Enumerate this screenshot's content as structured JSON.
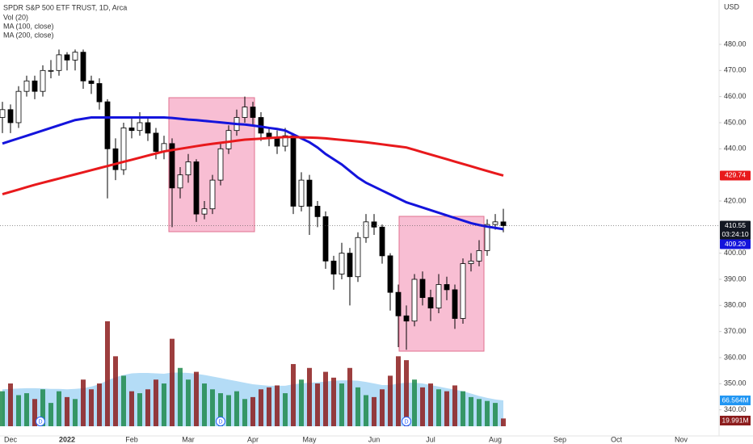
{
  "chart_data": {
    "type": "candlestick",
    "title": "SPDR S&P 500 ETF TRUST, 1D, Arca",
    "currency": "USD",
    "categories": [
      null,
      "Dec",
      null,
      null,
      null,
      null,
      null,
      null,
      "2022",
      null,
      null,
      null,
      null,
      null,
      null,
      null,
      "Feb",
      null,
      null,
      null,
      null,
      null,
      null,
      "Mar",
      null,
      null,
      null,
      null,
      null,
      null,
      null,
      "Apr",
      null,
      null,
      null,
      null,
      null,
      null,
      "May",
      null,
      null,
      null,
      null,
      null,
      null,
      null,
      "Jun",
      null,
      null,
      null,
      null,
      null,
      null,
      "Jul",
      null,
      null,
      null,
      null,
      null,
      null,
      null,
      "Aug",
      null,
      null,
      null,
      null,
      null,
      null,
      null,
      "Sep",
      null,
      null,
      null,
      null,
      null,
      null,
      "Oct",
      null,
      null,
      null,
      null,
      null,
      null,
      null,
      "Nov",
      null,
      null,
      null,
      null
    ],
    "open": [
      452,
      455,
      450,
      462,
      466,
      462,
      470,
      470,
      476,
      474,
      477,
      466,
      465,
      458,
      440,
      432,
      448,
      447,
      450,
      446,
      439,
      442,
      425,
      430,
      435,
      415,
      417,
      428,
      440,
      447,
      452,
      456,
      452,
      446,
      444,
      441,
      445,
      418,
      428,
      418,
      414,
      397,
      392,
      400,
      391,
      406,
      412,
      410,
      399,
      385,
      376,
      374,
      390,
      383,
      379,
      388,
      386,
      375,
      396,
      397,
      401,
      411,
      412,
      null,
      null,
      null,
      null,
      null,
      null,
      null,
      null,
      null,
      null,
      null,
      null,
      null,
      null,
      null,
      null,
      null,
      null,
      null,
      null,
      null,
      null,
      null,
      null,
      null,
      null
    ],
    "high": [
      458,
      457,
      464,
      468,
      468,
      472,
      474,
      478,
      477,
      478,
      478,
      468,
      467,
      459,
      444,
      450,
      452,
      454,
      452,
      448,
      445,
      444,
      433,
      438,
      436,
      420,
      430,
      442,
      449,
      455,
      460,
      458,
      454,
      448,
      447,
      448,
      446,
      431,
      430,
      420,
      416,
      399,
      404,
      402,
      408,
      415,
      415,
      411,
      400,
      388,
      380,
      392,
      393,
      386,
      392,
      391,
      388,
      398,
      400,
      405,
      413,
      415,
      417,
      null,
      null,
      null,
      null,
      null,
      null,
      null,
      null,
      null,
      null,
      null,
      null,
      null,
      null,
      null,
      null,
      null,
      null,
      null,
      null,
      null,
      null,
      null,
      null,
      null,
      null
    ],
    "low": [
      446,
      446,
      448,
      460,
      459,
      460,
      467,
      468,
      470,
      470,
      463,
      461,
      455,
      421,
      428,
      430,
      444,
      445,
      443,
      436,
      436,
      410,
      421,
      427,
      412,
      413,
      415,
      426,
      438,
      445,
      450,
      449,
      443,
      441,
      438,
      439,
      415,
      416,
      407,
      410,
      394,
      386,
      390,
      380,
      389,
      404,
      407,
      396,
      378,
      364,
      363,
      372,
      380,
      374,
      377,
      382,
      371,
      373,
      393,
      395,
      399,
      409,
      408,
      null,
      null,
      null,
      null,
      null,
      null,
      null,
      null,
      null,
      null,
      null,
      null,
      null,
      null,
      null,
      null,
      null,
      null,
      null,
      null,
      null,
      null,
      null,
      null,
      null,
      null
    ],
    "close": [
      455,
      450,
      462,
      466,
      462,
      470,
      470,
      476,
      474,
      477,
      466,
      465,
      458,
      440,
      432,
      448,
      447,
      450,
      446,
      439,
      442,
      425,
      430,
      435,
      415,
      417,
      428,
      440,
      447,
      452,
      456,
      452,
      446,
      444,
      441,
      445,
      418,
      428,
      418,
      414,
      397,
      392,
      400,
      391,
      406,
      412,
      410,
      399,
      385,
      376,
      374,
      390,
      383,
      379,
      388,
      386,
      375,
      396,
      397,
      401,
      411,
      412,
      410.55,
      null,
      null,
      null,
      null,
      null,
      null,
      null,
      null,
      null,
      null,
      null,
      null,
      null,
      null,
      null,
      null,
      null,
      null,
      null,
      null,
      null,
      null,
      null,
      null,
      null,
      null
    ],
    "up_color": "#ffffff",
    "down_color": "#000000",
    "wick_color": "#000000",
    "series": [
      {
        "name": "MA (100, close)",
        "color": "#1414dc",
        "values": [
          442,
          443,
          444,
          445,
          446,
          447,
          448,
          449,
          450,
          451,
          451.5,
          452,
          452,
          452,
          452,
          452,
          452,
          452,
          452,
          452,
          452,
          451.8,
          451.5,
          451.2,
          451,
          450.7,
          450.4,
          450.1,
          449.8,
          449.5,
          449.3,
          448.9,
          448.5,
          448,
          447.6,
          447,
          445.5,
          444,
          442.5,
          440.5,
          438,
          436,
          434,
          431.5,
          429,
          427,
          425.5,
          424,
          422.5,
          421,
          419.5,
          418.5,
          417.5,
          416.5,
          415.5,
          414.5,
          413.5,
          412.5,
          411.5,
          410.8,
          410.2,
          409.7,
          409.2,
          null,
          null,
          null,
          null,
          null,
          null,
          null,
          null,
          null,
          null,
          null,
          null,
          null,
          null,
          null,
          null,
          null,
          null,
          null,
          null,
          null,
          null,
          null,
          null,
          null,
          null
        ],
        "value_labels": [
          null,
          null,
          null,
          null,
          null,
          null,
          null,
          null,
          null,
          null,
          null,
          null,
          null,
          null,
          null,
          null,
          null,
          null,
          null,
          null,
          null,
          null,
          null,
          null,
          null,
          null,
          null,
          null,
          null,
          null,
          null,
          null,
          null,
          null,
          null,
          null,
          null,
          null,
          null,
          null,
          null,
          null,
          null,
          null,
          null,
          null,
          null,
          null,
          null,
          null,
          null,
          null,
          null,
          null,
          null,
          null,
          null,
          null,
          null,
          null,
          null,
          null,
          "409.20",
          null,
          null,
          null,
          null,
          null,
          null,
          null,
          null,
          null,
          null,
          null,
          null,
          null,
          null,
          null,
          null,
          null,
          null,
          null,
          null,
          null,
          null,
          null,
          null,
          null,
          null
        ]
      },
      {
        "name": "MA (200, close)",
        "color": "#e8191c",
        "values": [
          422.6,
          423.5,
          424.4,
          425.3,
          426.2,
          427,
          427.8,
          428.6,
          429.4,
          430.2,
          431,
          431.8,
          432.6,
          433.4,
          434.2,
          435,
          435.8,
          436.6,
          437.4,
          438.2,
          439,
          439.5,
          440,
          440.5,
          441,
          441.5,
          441.9,
          442.3,
          442.7,
          443.1,
          443.5,
          443.7,
          443.9,
          444.1,
          444.3,
          444.5,
          444.5,
          444.4,
          444.3,
          444.2,
          444,
          443.7,
          443.4,
          443.1,
          442.8,
          442.5,
          442.1,
          441.7,
          441.3,
          440.9,
          440.5,
          439.6,
          438.7,
          437.8,
          436.9,
          436,
          435.1,
          434.2,
          433.3,
          432.4,
          431.5,
          430.6,
          429.74,
          null,
          null,
          null,
          null,
          null,
          null,
          null,
          null,
          null,
          null,
          null,
          null,
          null,
          null,
          null,
          null,
          null,
          null,
          null,
          null,
          null,
          null,
          null,
          null,
          null,
          null
        ]
      }
    ],
    "volume": {
      "name": "Vol (20)",
      "up_color": "#1f8a4c",
      "down_color": "#8c1c1c",
      "ylim": [
        0,
        270
      ],
      "values": [
        90,
        110,
        80,
        85,
        70,
        95,
        60,
        90,
        75,
        70,
        120,
        95,
        110,
        270,
        180,
        130,
        90,
        85,
        95,
        120,
        110,
        225,
        150,
        120,
        140,
        110,
        95,
        85,
        80,
        90,
        70,
        75,
        95,
        100,
        105,
        85,
        160,
        120,
        150,
        110,
        140,
        125,
        110,
        150,
        100,
        80,
        75,
        95,
        130,
        180,
        170,
        120,
        100,
        110,
        95,
        90,
        105,
        90,
        75,
        70,
        65,
        60,
        19.991,
        null,
        null,
        null,
        null,
        null,
        null,
        null,
        null,
        null,
        null,
        null,
        null,
        null,
        null,
        null,
        null,
        null,
        null,
        null,
        null,
        null,
        null,
        null,
        null,
        null,
        null
      ],
      "value_labels": [
        null,
        null,
        null,
        null,
        null,
        null,
        null,
        null,
        null,
        null,
        null,
        null,
        null,
        null,
        null,
        null,
        null,
        null,
        null,
        null,
        null,
        null,
        null,
        null,
        null,
        null,
        null,
        null,
        null,
        null,
        null,
        null,
        null,
        null,
        null,
        null,
        null,
        null,
        null,
        null,
        null,
        null,
        null,
        null,
        null,
        null,
        null,
        null,
        null,
        null,
        null,
        null,
        null,
        null,
        null,
        null,
        null,
        null,
        null,
        null,
        null,
        null,
        "19.991M",
        null,
        null,
        null,
        null,
        null,
        null,
        null,
        null,
        null,
        null,
        null,
        null,
        null,
        null,
        null,
        null,
        null,
        null,
        null,
        null,
        null,
        null,
        null,
        null,
        null,
        null
      ],
      "ma": {
        "color": "#a7d6f5",
        "values": [
          95,
          96,
          97,
          98,
          98,
          97,
          96,
          96,
          95,
          96,
          98,
          102,
          108,
          118,
          126,
          132,
          136,
          137,
          137,
          136,
          135,
          138,
          138,
          137,
          135,
          132,
          128,
          124,
          120,
          116,
          112,
          108,
          106,
          104,
          104,
          104,
          108,
          110,
          112,
          113,
          115,
          117,
          118,
          118,
          117,
          114,
          110,
          106,
          106,
          110,
          112,
          112,
          110,
          106,
          102,
          98,
          94,
          90,
          84,
          78,
          73,
          69,
          66.564,
          null,
          null,
          null,
          null,
          null,
          null,
          null,
          null,
          null,
          null,
          null,
          null,
          null,
          null,
          null,
          null,
          null,
          null,
          null,
          null,
          null,
          null,
          null,
          null,
          null,
          null
        ],
        "value_labels": [
          null,
          null,
          null,
          null,
          null,
          null,
          null,
          null,
          null,
          null,
          null,
          null,
          null,
          null,
          null,
          null,
          null,
          null,
          null,
          null,
          null,
          null,
          null,
          null,
          null,
          null,
          null,
          null,
          null,
          null,
          null,
          null,
          null,
          null,
          null,
          null,
          null,
          null,
          null,
          null,
          null,
          null,
          null,
          null,
          null,
          null,
          null,
          null,
          null,
          null,
          null,
          null,
          null,
          null,
          null,
          null,
          null,
          null,
          null,
          null,
          null,
          null,
          "66.564M",
          null,
          null,
          null,
          null,
          null,
          null,
          null,
          null,
          null,
          null,
          null,
          null,
          null,
          null,
          null,
          null,
          null,
          null,
          null,
          null,
          null,
          null,
          null,
          null,
          null,
          null
        ]
      }
    },
    "countdown": "03:24:10",
    "dividends": [
      "D",
      "D",
      "D"
    ],
    "ylim": [
      330,
      497
    ],
    "yticks": [
      {
        "value": 480,
        "label": "480.00"
      },
      {
        "value": 470,
        "label": "470.00"
      },
      {
        "value": 460,
        "label": "460.00"
      },
      {
        "value": 450,
        "label": "450.00"
      },
      {
        "value": 440,
        "label": "440.00"
      },
      {
        "value": 420,
        "label": "420.00"
      },
      {
        "value": 400,
        "label": "400.00"
      },
      {
        "value": 390,
        "label": "390.00"
      },
      {
        "value": 380,
        "label": "380.00"
      },
      {
        "value": 370,
        "label": "370.00"
      },
      {
        "value": 360,
        "label": "360.00"
      },
      {
        "value": 350,
        "label": "350.00"
      },
      {
        "value": 340,
        "label": "340.00"
      }
    ],
    "grid": false
  }
}
